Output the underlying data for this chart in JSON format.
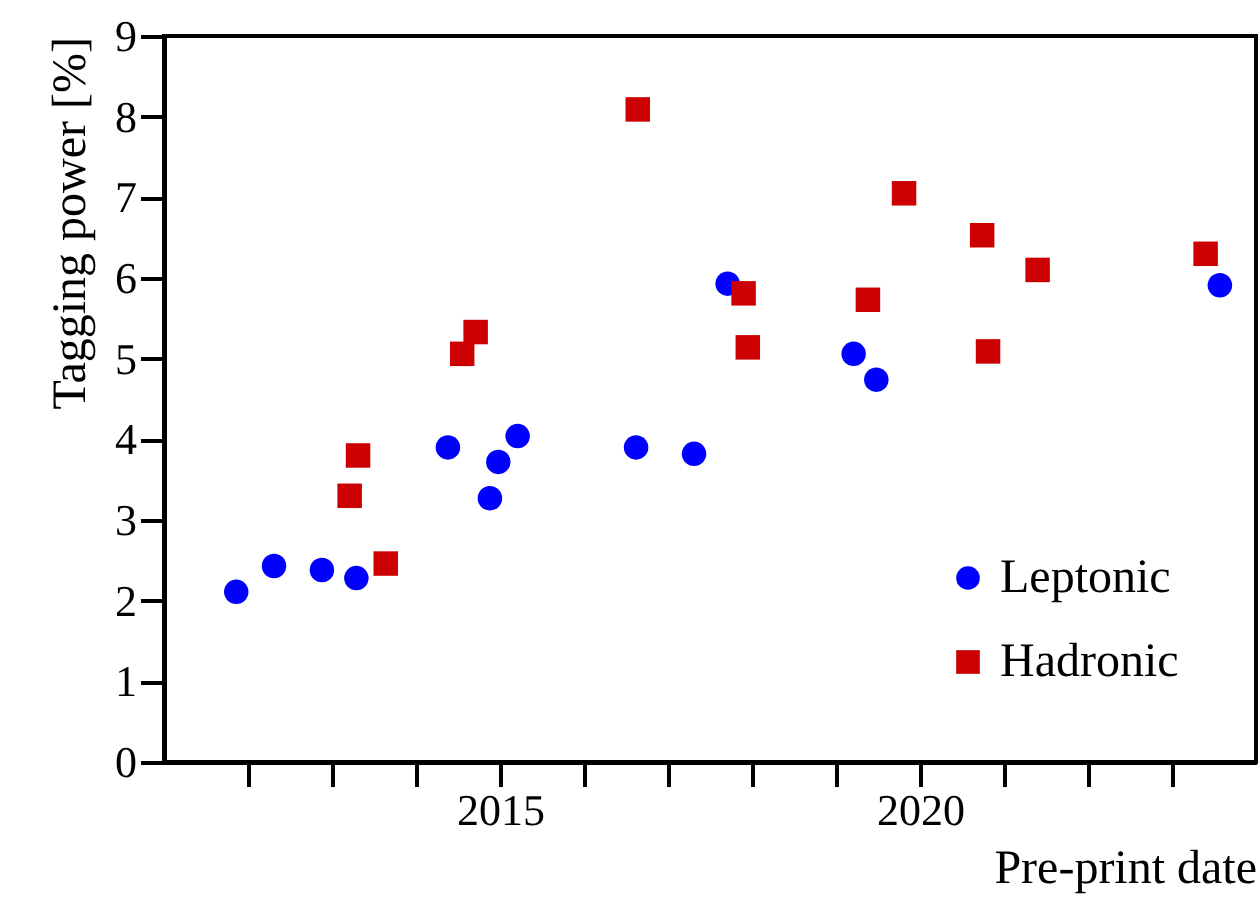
{
  "chart_data": {
    "type": "scatter",
    "xlabel": "Pre-print date",
    "ylabel": "Tagging power [%]",
    "xlim": [
      2011,
      2024
    ],
    "xticks": [
      {
        "value": 2012,
        "label": null
      },
      {
        "value": 2013,
        "label": null
      },
      {
        "value": 2014,
        "label": null
      },
      2015,
      {
        "value": 2016,
        "label": null
      },
      {
        "value": 2017,
        "label": null
      },
      {
        "value": 2018,
        "label": null
      },
      {
        "value": 2019,
        "label": null
      },
      2020,
      {
        "value": 2021,
        "label": null
      },
      {
        "value": 2022,
        "label": null
      },
      {
        "value": 2023,
        "label": null
      }
    ],
    "ylim": [
      0,
      9
    ],
    "yticks": [
      0,
      1,
      2,
      3,
      4,
      5,
      6,
      7,
      8,
      9
    ],
    "grid": false,
    "legend": "bottom right",
    "series": [
      {
        "name": "Leptonic",
        "color": "#0000ff",
        "marker": "circle",
        "x": [
          2011.86,
          2012.31,
          2012.88,
          2013.29,
          2014.38,
          2014.88,
          2014.98,
          2015.21,
          2016.62,
          2017.31,
          2017.71,
          2019.21,
          2019.48,
          2023.57
        ],
        "values": [
          2.11,
          2.43,
          2.38,
          2.28,
          3.9,
          3.27,
          3.72,
          4.04,
          3.9,
          3.82,
          5.93,
          5.06,
          4.74,
          5.91
        ]
      },
      {
        "name": "Hadronic",
        "color": "#cc0000",
        "marker": "square",
        "x": [
          2013.21,
          2013.31,
          2013.64,
          2014.55,
          2014.71,
          2016.64,
          2017.9,
          2017.95,
          2019.38,
          2019.81,
          2020.74,
          2020.81,
          2021.4,
          2023.4
        ],
        "values": [
          3.3,
          3.8,
          2.46,
          5.06,
          5.33,
          8.09,
          5.81,
          5.14,
          5.73,
          7.05,
          6.53,
          5.09,
          6.1,
          6.3
        ]
      }
    ]
  }
}
